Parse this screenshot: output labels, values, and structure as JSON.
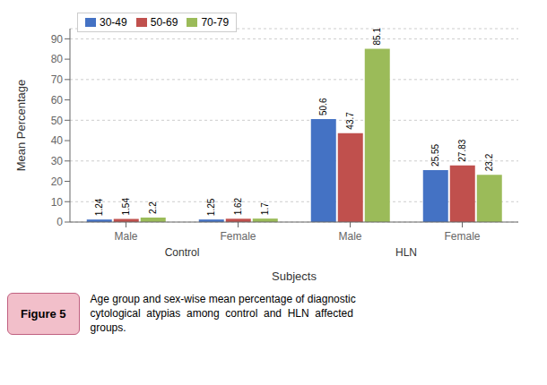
{
  "chart_data": {
    "type": "bar",
    "categories": [
      "Male",
      "Female",
      "Male",
      "Female"
    ],
    "category_groups": [
      "Control",
      "Control",
      "HLN",
      "HLN"
    ],
    "series": [
      {
        "name": "30-49",
        "color": "#4472C4",
        "values": [
          1.24,
          1.25,
          50.6,
          25.55
        ]
      },
      {
        "name": "50-69",
        "color": "#C0504D",
        "values": [
          1.54,
          1.62,
          43.7,
          27.83
        ]
      },
      {
        "name": "70-79",
        "color": "#9BBB59",
        "values": [
          2.2,
          1.7,
          85.1,
          23.2
        ]
      }
    ],
    "ylabel": "Mean Percentage",
    "xlabel": "Subjects",
    "ylim": [
      0,
      95
    ],
    "yticks": [
      0,
      10,
      20,
      30,
      40,
      50,
      60,
      70,
      80,
      90
    ],
    "grid": true,
    "legend": "upper left",
    "data_labels": true,
    "caption": {
      "label": "Figure 5",
      "lines": [
        "Age group and sex-wise mean percentage of diagnostic",
        "cytological  atypias  among  control  and  HLN  affected",
        "groups."
      ]
    }
  }
}
